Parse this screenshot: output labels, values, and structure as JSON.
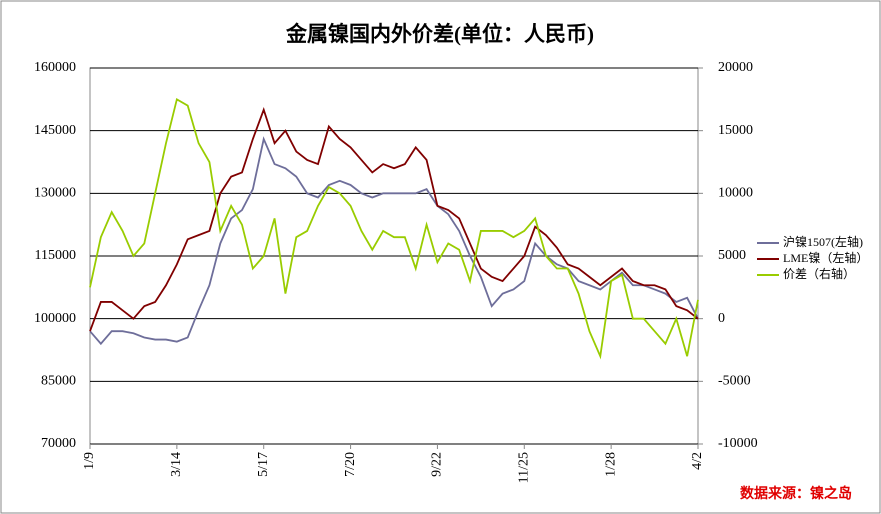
{
  "chart_data": {
    "type": "line",
    "title": "金属镍国内外价差(单位：人民币)",
    "annotations": [
      "数据来源：镍之岛"
    ],
    "categories": [
      "1/9",
      null,
      null,
      null,
      null,
      null,
      null,
      null,
      "3/14",
      null,
      null,
      null,
      null,
      null,
      null,
      null,
      "5/17",
      null,
      null,
      null,
      null,
      null,
      null,
      null,
      "7/20",
      null,
      null,
      null,
      null,
      null,
      null,
      null,
      "9/22",
      null,
      null,
      null,
      null,
      null,
      null,
      null,
      "11/25",
      null,
      null,
      null,
      null,
      null,
      null,
      null,
      "1/28",
      null,
      null,
      null,
      null,
      null,
      null,
      null,
      "4/2"
    ],
    "series": [
      {
        "name": "沪镍1507(左轴)",
        "color": "#6e6e9a",
        "axis": "y",
        "values": [
          97000,
          94000,
          97000,
          97000,
          96500,
          95500,
          95000,
          95000,
          94500,
          95500,
          102000,
          108000,
          118000,
          124000,
          126000,
          131000,
          143000,
          137000,
          136000,
          134000,
          130000,
          129000,
          132000,
          133000,
          132000,
          130000,
          129000,
          130000,
          130000,
          130000,
          130000,
          131000,
          127000,
          125000,
          121000,
          115000,
          110000,
          103000,
          106000,
          107000,
          109000,
          118000,
          115000,
          113000,
          112000,
          109000,
          108000,
          107000,
          109000,
          111000,
          108000,
          108000,
          107000,
          106000,
          104000,
          105000,
          100000
        ]
      },
      {
        "name": "LME镍（左轴）",
        "color": "#800000",
        "axis": "y",
        "values": [
          97000,
          104000,
          104000,
          102000,
          100000,
          103000,
          104000,
          108000,
          113000,
          119000,
          120000,
          121000,
          130000,
          134000,
          135000,
          143000,
          150000,
          142000,
          145000,
          140000,
          138000,
          137000,
          146000,
          143000,
          141000,
          138000,
          135000,
          137000,
          136000,
          137000,
          141000,
          138000,
          127000,
          126000,
          124000,
          118000,
          112000,
          110000,
          109000,
          112000,
          115000,
          122000,
          120000,
          117000,
          113000,
          112000,
          110000,
          108000,
          110000,
          112000,
          109000,
          108000,
          108000,
          107000,
          103000,
          102000,
          100000
        ]
      },
      {
        "name": "价差（右轴）",
        "color": "#99cc00",
        "axis": "y2",
        "values": [
          2500,
          6500,
          8500,
          7000,
          5000,
          6000,
          10000,
          14000,
          17500,
          17000,
          14000,
          12500,
          7000,
          9000,
          7500,
          4000,
          5000,
          8000,
          2000,
          6500,
          7000,
          9000,
          10500,
          10000,
          9000,
          7000,
          5500,
          7000,
          6500,
          6500,
          4000,
          7500,
          4500,
          6000,
          5500,
          3000,
          7000,
          7000,
          7000,
          6500,
          7000,
          8000,
          5000,
          4000,
          4000,
          2000,
          -1000,
          -3000,
          3000,
          3500,
          0,
          0,
          -1000,
          -2000,
          0,
          -3000,
          1500
        ]
      }
    ],
    "ylim": [
      70000,
      160000
    ],
    "yticks": [
      70000,
      85000,
      100000,
      115000,
      130000,
      145000,
      160000
    ],
    "y2lim": [
      -10000,
      20000
    ],
    "y2ticks": [
      -10000,
      -5000,
      0,
      5000,
      10000,
      15000,
      20000
    ],
    "grid": true,
    "legend": "right"
  }
}
